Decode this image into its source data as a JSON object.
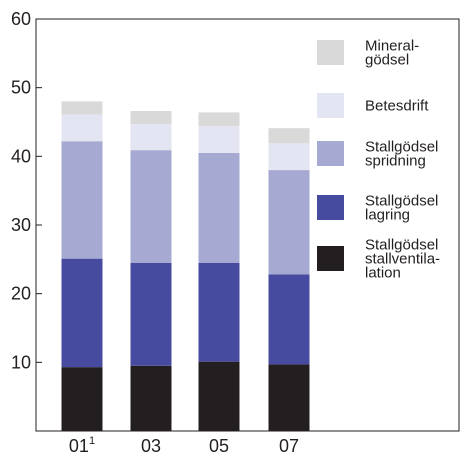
{
  "chart_data": {
    "type": "bar",
    "stacked": true,
    "categories": [
      "01",
      "03",
      "05",
      "07"
    ],
    "category_superscripts": [
      "1",
      "",
      "",
      ""
    ],
    "ylim": [
      0,
      60
    ],
    "yticks": [
      10,
      20,
      30,
      40,
      50,
      60
    ],
    "grid": false,
    "legend_position": "right",
    "series": [
      {
        "name": "Stallgödsel stallventilation",
        "color": "#231f20",
        "values": [
          9.3,
          9.5,
          10.1,
          9.7
        ]
      },
      {
        "name": "Stallgödsel lagring",
        "color": "#474ba0",
        "values": [
          15.8,
          15.0,
          14.4,
          13.1
        ]
      },
      {
        "name": "Stallgödsel spridning",
        "color": "#a6a9d2",
        "values": [
          17.1,
          16.4,
          16.0,
          15.2
        ]
      },
      {
        "name": "Betesdrift",
        "color": "#e4e5f2",
        "values": [
          3.9,
          3.8,
          3.9,
          3.9
        ]
      },
      {
        "name": "Mineral-gödsel",
        "color": "#d9d9d9",
        "values": [
          1.9,
          1.9,
          2.0,
          2.2
        ]
      }
    ],
    "legend": [
      {
        "lines": [
          "Mineral-",
          "gödsel"
        ],
        "color": "#d9d9d9"
      },
      {
        "lines": [
          "Betesdrift"
        ],
        "color": "#e4e5f2"
      },
      {
        "lines": [
          "Stallgödsel",
          "spridning"
        ],
        "color": "#a6a9d2"
      },
      {
        "lines": [
          "Stallgödsel",
          "lagring"
        ],
        "color": "#474ba0"
      },
      {
        "lines": [
          "Stallgödsel",
          "stallventila-",
          "lation"
        ],
        "color": "#231f20"
      }
    ]
  }
}
